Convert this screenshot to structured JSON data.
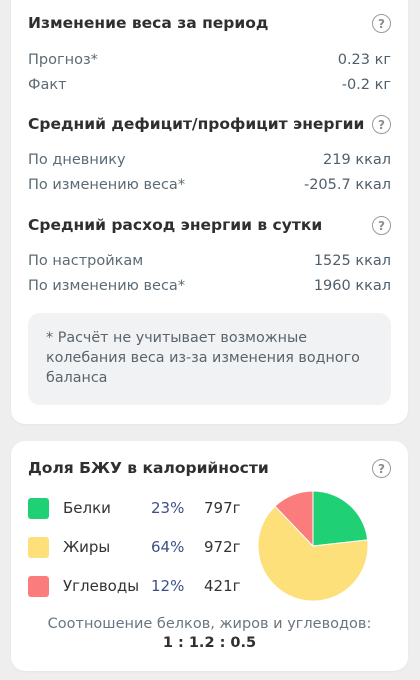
{
  "weight_change": {
    "title": "Изменение веса за период",
    "forecast_label": "Прогноз*",
    "forecast_value": "0.23 кг",
    "fact_label": "Факт",
    "fact_value": "-0.2 кг"
  },
  "deficit": {
    "title": "Средний дефицит/профицит энергии",
    "diary_label": "По дневнику",
    "diary_value": "219 ккал",
    "weight_label": "По изменению веса*",
    "weight_value": "-205.7 ккал"
  },
  "expenditure": {
    "title": "Средний расход энергии в сутки",
    "settings_label": "По настройкам",
    "settings_value": "1525 ккал",
    "weight_label": "По изменению веса*",
    "weight_value": "1960 ккал"
  },
  "note": {
    "text": "* Расчёт не учитывает возможные колебания веса из-за изменения водного баланса"
  },
  "help_glyph": "?",
  "bju": {
    "title": "Доля БЖУ в калорийности",
    "ratio_label": "Соотношение белков, жиров и углеводов:",
    "ratio_value": "1 : 1.2 : 0.5"
  },
  "chart_data": {
    "type": "pie",
    "title": "Доля БЖУ в калорийности",
    "slices": [
      {
        "name": "Белки",
        "percent": 23,
        "percent_label": "23%",
        "grams": "797г",
        "color": "#1fd174"
      },
      {
        "name": "Жиры",
        "percent": 64,
        "percent_label": "64%",
        "grams": "972г",
        "color": "#fde07a"
      },
      {
        "name": "Углеводы",
        "percent": 12,
        "percent_label": "12%",
        "grams": "421г",
        "color": "#fa7c7c"
      }
    ],
    "legend": "left"
  }
}
